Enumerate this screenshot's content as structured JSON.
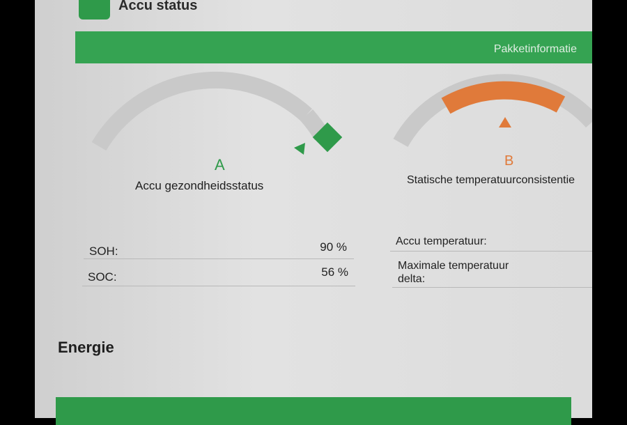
{
  "header": {
    "title": "Accu status",
    "logo_icon": "car-battery-logo"
  },
  "band": {
    "label": "Pakketinformatie",
    "color": "#35a352"
  },
  "gauges": [
    {
      "grade": "A",
      "label": "Accu gezondheidsstatus",
      "grade_color": "#2f9a4a"
    },
    {
      "grade": "B",
      "label": "Statische temperatuurconsistentie",
      "grade_color": "#e07a3a"
    }
  ],
  "left_table": [
    {
      "label": "SOH:",
      "value": "90 %"
    },
    {
      "label": "SOC:",
      "value": "56 %"
    }
  ],
  "right_table": [
    {
      "label": "Accu temperatuur:",
      "value": ""
    },
    {
      "label": "Maximale temperatuur delta:",
      "value": ""
    }
  ],
  "section": {
    "title": "Energie"
  }
}
